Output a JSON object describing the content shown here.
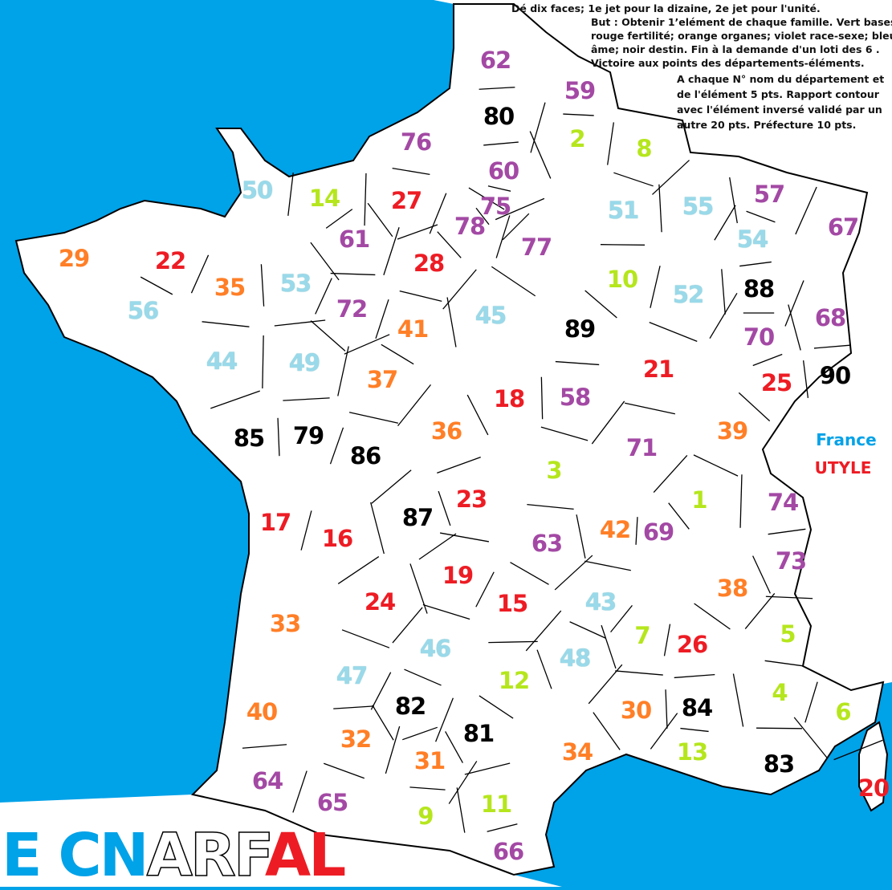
{
  "colors": {
    "sea": "#00a2e8",
    "green": "#b5e61d",
    "red": "#ed1c24",
    "orange": "#ff7f27",
    "purple": "#a349a4",
    "blue": "#99d9ea",
    "black": "#000000"
  },
  "rules": {
    "line1": "Dé dix faces; 1e jet pour la dizaine, 2e jet pour l'unité.",
    "lines2": [
      "But : Obtenir 1’elément de chaque famille. Vert bases;",
      "rouge fertilité; orange organes; violet race-sexe; bleu",
      "âme; noir destin. Fin à  la demande  d'un loti des 6 .",
      "Victoire aux points des départements-éléments."
    ],
    "lines3": [
      "A chaque N° nom du département et",
      "de l'élément 5 pts. Rapport contour",
      "avec l'élément inversé validé par un",
      "autre 20 pts. Préfecture 10 pts."
    ]
  },
  "legend": {
    "france": "France",
    "utyle": "UTYLE"
  },
  "logo": [
    {
      "text": "E ",
      "style": "blue"
    },
    {
      "text": "CN",
      "style": "blue"
    },
    {
      "text": "ARF",
      "style": "outline"
    },
    {
      "text": "AL",
      "style": "red"
    }
  ],
  "departments": [
    {
      "n": "62",
      "c": "purple"
    },
    {
      "n": "59",
      "c": "purple"
    },
    {
      "n": "80",
      "c": "black"
    },
    {
      "n": "2",
      "c": "green"
    },
    {
      "n": "8",
      "c": "green"
    },
    {
      "n": "76",
      "c": "purple"
    },
    {
      "n": "60",
      "c": "purple"
    },
    {
      "n": "14",
      "c": "green"
    },
    {
      "n": "50",
      "c": "blue"
    },
    {
      "n": "27",
      "c": "red"
    },
    {
      "n": "75",
      "c": "purple"
    },
    {
      "n": "78",
      "c": "purple"
    },
    {
      "n": "51",
      "c": "blue"
    },
    {
      "n": "55",
      "c": "blue"
    },
    {
      "n": "57",
      "c": "purple"
    },
    {
      "n": "67",
      "c": "purple"
    },
    {
      "n": "54",
      "c": "blue"
    },
    {
      "n": "29",
      "c": "orange"
    },
    {
      "n": "22",
      "c": "red"
    },
    {
      "n": "61",
      "c": "purple"
    },
    {
      "n": "28",
      "c": "red"
    },
    {
      "n": "77",
      "c": "purple"
    },
    {
      "n": "35",
      "c": "orange"
    },
    {
      "n": "53",
      "c": "blue"
    },
    {
      "n": "10",
      "c": "green"
    },
    {
      "n": "52",
      "c": "blue"
    },
    {
      "n": "88",
      "c": "black"
    },
    {
      "n": "56",
      "c": "blue"
    },
    {
      "n": "72",
      "c": "purple"
    },
    {
      "n": "41",
      "c": "orange"
    },
    {
      "n": "45",
      "c": "blue"
    },
    {
      "n": "89",
      "c": "black"
    },
    {
      "n": "68",
      "c": "purple"
    },
    {
      "n": "70",
      "c": "purple"
    },
    {
      "n": "44",
      "c": "blue"
    },
    {
      "n": "49",
      "c": "blue"
    },
    {
      "n": "37",
      "c": "orange"
    },
    {
      "n": "21",
      "c": "red"
    },
    {
      "n": "25",
      "c": "red"
    },
    {
      "n": "90",
      "c": "black"
    },
    {
      "n": "18",
      "c": "red"
    },
    {
      "n": "58",
      "c": "purple"
    },
    {
      "n": "85",
      "c": "black"
    },
    {
      "n": "79",
      "c": "black"
    },
    {
      "n": "86",
      "c": "black"
    },
    {
      "n": "36",
      "c": "orange"
    },
    {
      "n": "39",
      "c": "orange"
    },
    {
      "n": "71",
      "c": "purple"
    },
    {
      "n": "3",
      "c": "green"
    },
    {
      "n": "1",
      "c": "green"
    },
    {
      "n": "74",
      "c": "purple"
    },
    {
      "n": "17",
      "c": "red"
    },
    {
      "n": "16",
      "c": "red"
    },
    {
      "n": "87",
      "c": "black"
    },
    {
      "n": "23",
      "c": "red"
    },
    {
      "n": "42",
      "c": "orange"
    },
    {
      "n": "69",
      "c": "purple"
    },
    {
      "n": "63",
      "c": "purple"
    },
    {
      "n": "73",
      "c": "purple"
    },
    {
      "n": "19",
      "c": "red"
    },
    {
      "n": "24",
      "c": "red"
    },
    {
      "n": "15",
      "c": "red"
    },
    {
      "n": "43",
      "c": "blue"
    },
    {
      "n": "38",
      "c": "orange"
    },
    {
      "n": "33",
      "c": "orange"
    },
    {
      "n": "7",
      "c": "green"
    },
    {
      "n": "26",
      "c": "red"
    },
    {
      "n": "5",
      "c": "green"
    },
    {
      "n": "46",
      "c": "blue"
    },
    {
      "n": "48",
      "c": "blue"
    },
    {
      "n": "47",
      "c": "blue"
    },
    {
      "n": "12",
      "c": "green"
    },
    {
      "n": "4",
      "c": "green"
    },
    {
      "n": "82",
      "c": "black"
    },
    {
      "n": "40",
      "c": "orange"
    },
    {
      "n": "30",
      "c": "orange"
    },
    {
      "n": "84",
      "c": "black"
    },
    {
      "n": "6",
      "c": "green"
    },
    {
      "n": "32",
      "c": "orange"
    },
    {
      "n": "81",
      "c": "black"
    },
    {
      "n": "34",
      "c": "orange"
    },
    {
      "n": "13",
      "c": "green"
    },
    {
      "n": "83",
      "c": "black"
    },
    {
      "n": "31",
      "c": "orange"
    },
    {
      "n": "20",
      "c": "red"
    },
    {
      "n": "64",
      "c": "purple"
    },
    {
      "n": "65",
      "c": "purple"
    },
    {
      "n": "11",
      "c": "green"
    },
    {
      "n": "9",
      "c": "green"
    },
    {
      "n": "66",
      "c": "purple"
    }
  ]
}
